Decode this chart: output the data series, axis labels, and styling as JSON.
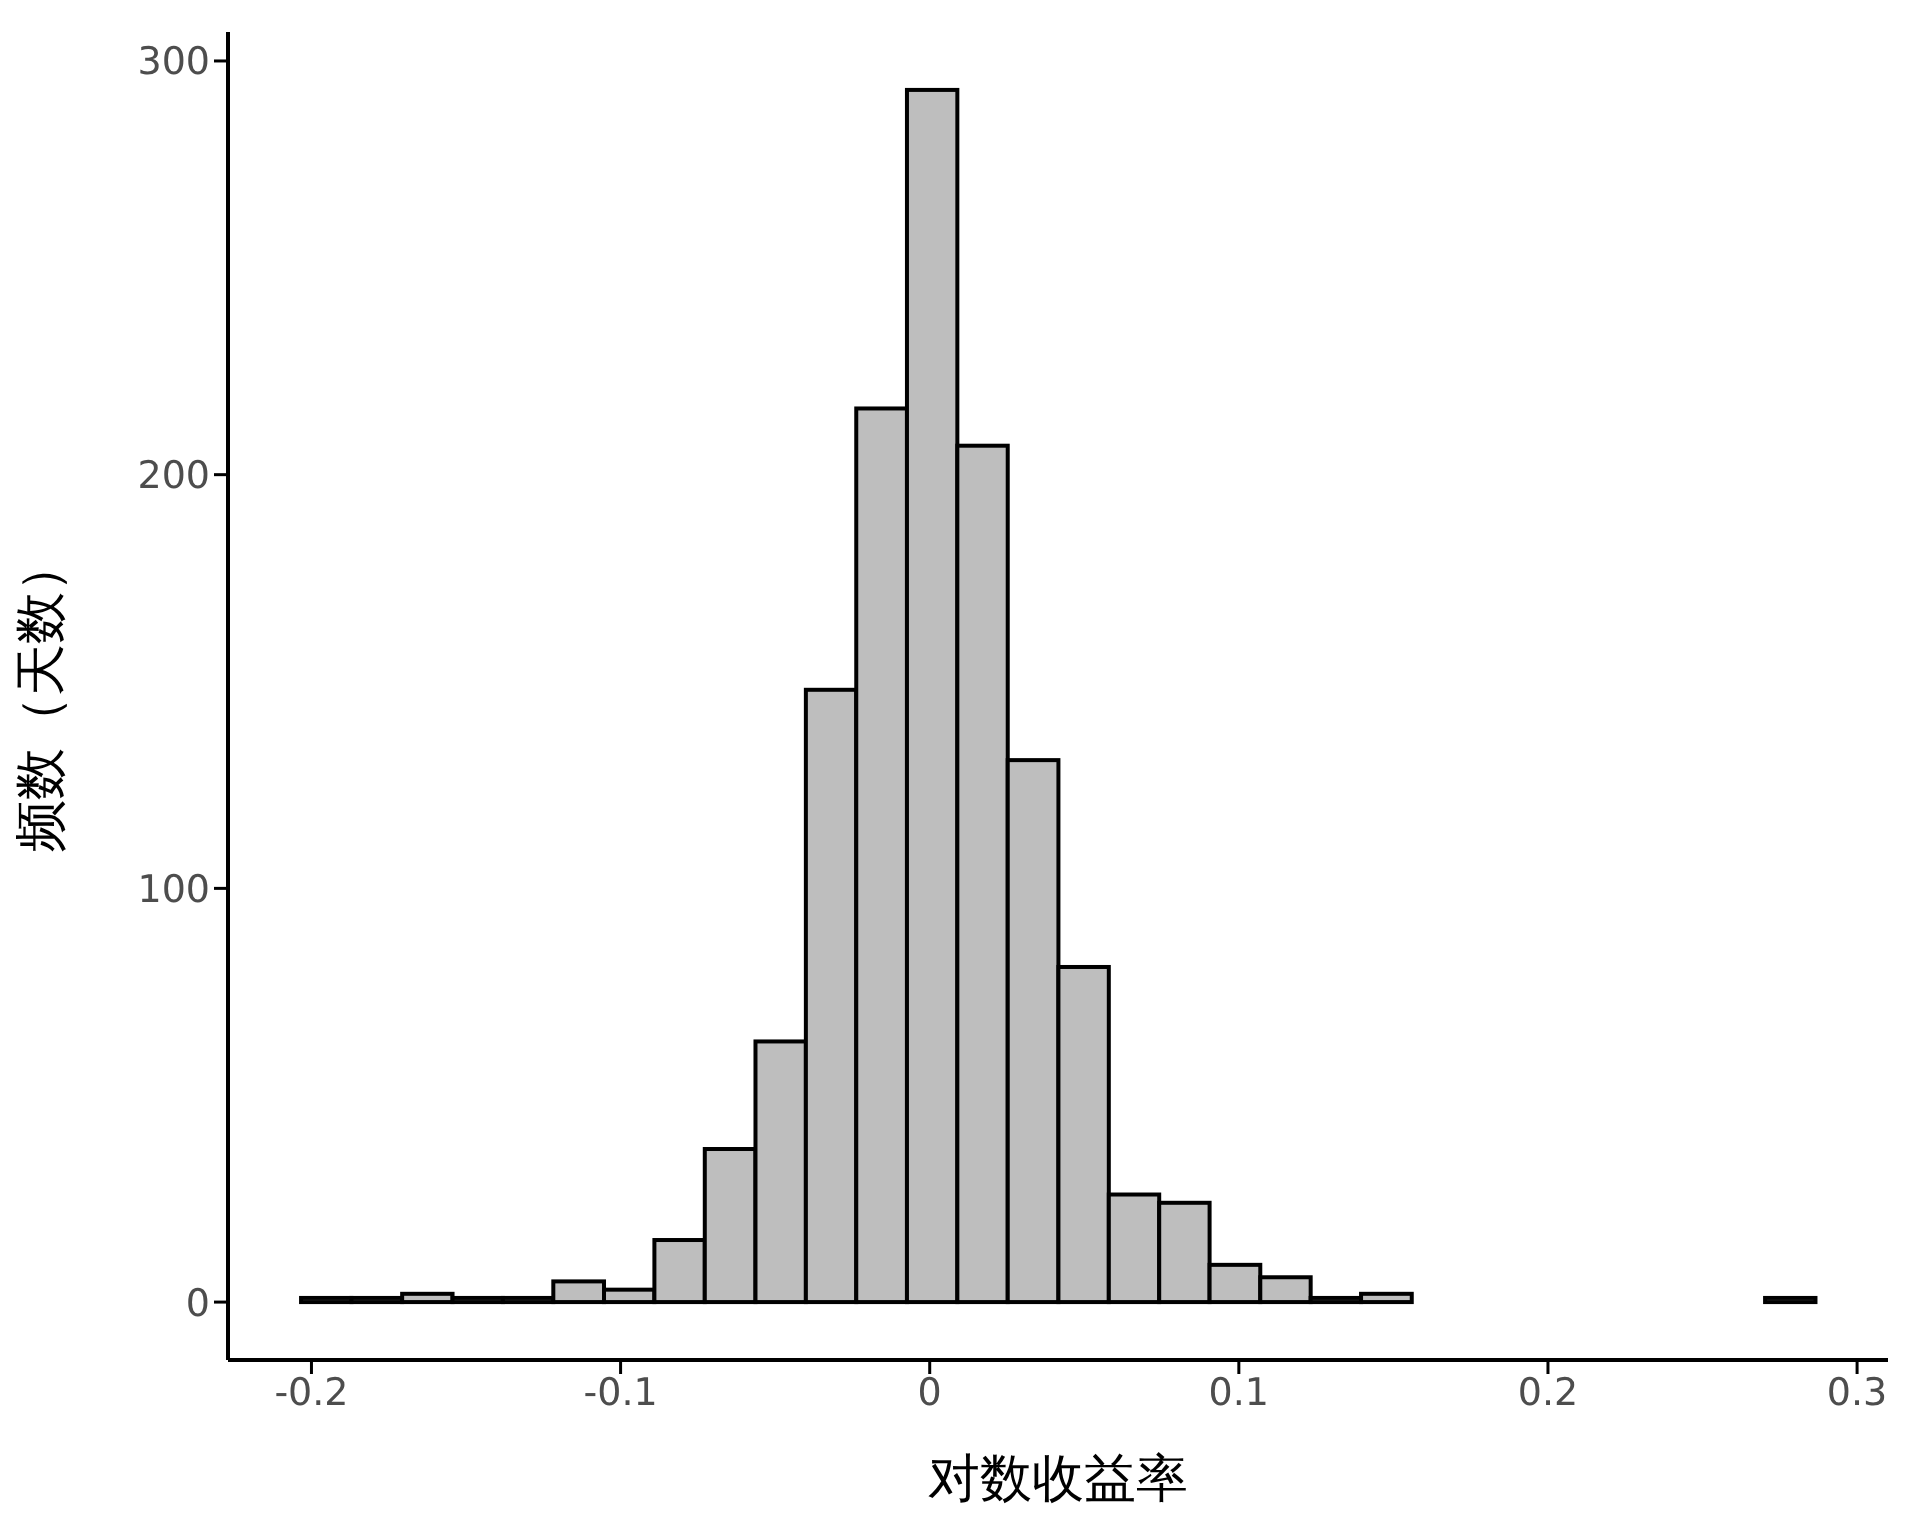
{
  "chart_data": {
    "type": "histogram",
    "xlabel": "对数收益率",
    "ylabel": "频数（天数）",
    "bins": [
      -0.2033,
      -0.187,
      -0.1706,
      -0.1543,
      -0.138,
      -0.1217,
      -0.1053,
      -0.089,
      -0.0727,
      -0.0563,
      -0.04,
      -0.0237,
      -0.0073,
      0.009,
      0.0253,
      0.0417,
      0.058,
      0.0743,
      0.0906,
      0.107,
      0.1233,
      0.1396,
      0.156,
      0.1723,
      0.1886,
      0.205,
      0.2213,
      0.2376,
      0.2539,
      0.2703,
      0.2866
    ],
    "values": [
      1,
      1,
      2,
      1,
      1,
      5,
      3,
      15,
      37,
      63,
      148,
      216,
      293,
      207,
      131,
      81,
      26,
      24,
      9,
      6,
      1,
      2,
      0,
      0,
      0,
      0,
      0,
      0,
      0,
      1
    ],
    "color": "#bebebe",
    "xlim": [
      -0.227,
      0.31
    ],
    "ylim": [
      -14,
      307
    ],
    "xticks": [
      -0.2,
      -0.1,
      0,
      0.1,
      0.2,
      0.3
    ],
    "yticks": [
      0,
      100,
      200,
      300
    ],
    "grid": false
  }
}
